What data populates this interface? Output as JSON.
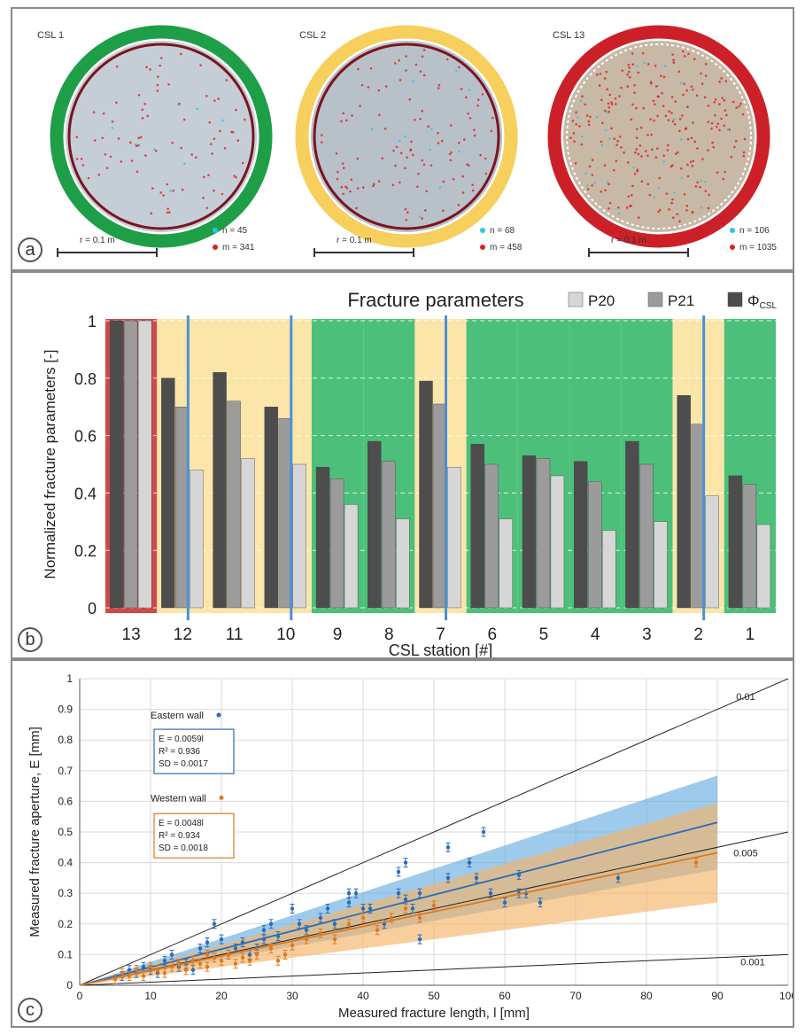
{
  "panels": {
    "a": {
      "label": "a",
      "samples": [
        {
          "title": "CSL 1",
          "ring_color": "#1f9e48",
          "n": "n = 45",
          "m": "m = 341",
          "scale": "r = 0.1 m"
        },
        {
          "title": "CSL 2",
          "ring_color": "#f6cf5c",
          "n": "n = 68",
          "m": "m = 458",
          "scale": "r = 0.1 m"
        },
        {
          "title": "CSL 13",
          "ring_color": "#cc2029",
          "n": "n = 106",
          "m": "m = 1035",
          "scale": "r = 0.1 m"
        }
      ],
      "colors": {
        "n_dot": "#2ec4e8",
        "m_dot": "#e02020"
      }
    },
    "b": {
      "label": "b"
    },
    "c": {
      "label": "c"
    }
  },
  "chart_data": [
    {
      "type": "bar",
      "title": "Fracture parameters",
      "xlabel": "CSL station [#]",
      "ylabel": "Normalized fracture parameters [-]",
      "ylim": [
        0,
        1
      ],
      "yticks": [
        "0",
        "0.2",
        "0.4",
        "0.6",
        "0.8",
        "1"
      ],
      "categories": [
        "13",
        "12",
        "11",
        "10",
        "9",
        "8",
        "7",
        "6",
        "5",
        "4",
        "3",
        "2",
        "1"
      ],
      "legend_position": "top-right",
      "series": [
        {
          "name": "P20",
          "color": "#d6d6d6",
          "values": [
            1.0,
            0.48,
            0.52,
            0.5,
            0.36,
            0.31,
            0.49,
            0.31,
            0.46,
            0.27,
            0.3,
            0.39,
            0.29
          ]
        },
        {
          "name": "P21",
          "color": "#9b9b9b",
          "values": [
            1.0,
            0.7,
            0.72,
            0.66,
            0.45,
            0.51,
            0.71,
            0.5,
            0.52,
            0.44,
            0.5,
            0.64,
            0.43
          ]
        },
        {
          "name": "Φ",
          "name_sub": "CSL",
          "color": "#4d4d4d",
          "values": [
            1.0,
            0.8,
            0.82,
            0.7,
            0.49,
            0.58,
            0.79,
            0.57,
            0.53,
            0.51,
            0.58,
            0.74,
            0.46
          ]
        }
      ],
      "station_zones": [
        "red",
        "yellow",
        "yellow",
        "yellow",
        "green",
        "green",
        "yellow",
        "green",
        "green",
        "green",
        "green",
        "yellow",
        "green"
      ],
      "zone_colors": {
        "red": "#d04848",
        "yellow": "#fbe5a8",
        "green": "#4cc07a"
      },
      "marked_stations": [
        "12",
        "10",
        "7",
        "2"
      ],
      "marker_color": "#4a90d9"
    },
    {
      "type": "scatter",
      "xlabel": "Measured fracture length, l [mm]",
      "ylabel": "Measured fracture aperture, E [mm]",
      "xlim": [
        0,
        100
      ],
      "ylim": [
        0,
        1
      ],
      "xticks": [
        "0",
        "10",
        "20",
        "30",
        "40",
        "50",
        "60",
        "70",
        "80",
        "90",
        "100"
      ],
      "yticks": [
        "0",
        "0.1",
        "0.2",
        "0.3",
        "0.4",
        "0.5",
        "0.6",
        "0.7",
        "0.8",
        "0.9",
        "1"
      ],
      "reference_lines": [
        {
          "label": "0.01",
          "slope": 0.01
        },
        {
          "label": "0.005",
          "slope": 0.005
        },
        {
          "label": "0.001",
          "slope": 0.001
        }
      ],
      "series": [
        {
          "name": "Eastern wall",
          "color": "#2b6cb8",
          "band_color": "#6aaee0",
          "fit": {
            "slope": 0.0059,
            "xmax": 90
          },
          "band": {
            "upper": 0.0076,
            "lower": 0.0042
          },
          "stats": [
            "E = 0.0059l",
            "R² = 0.936",
            "SD = 0.0017"
          ],
          "points": [
            [
              6,
              0.03
            ],
            [
              7,
              0.05
            ],
            [
              8,
              0.04
            ],
            [
              9,
              0.06
            ],
            [
              10,
              0.05
            ],
            [
              11,
              0.04
            ],
            [
              12,
              0.08
            ],
            [
              13,
              0.1
            ],
            [
              14,
              0.06
            ],
            [
              15,
              0.07
            ],
            [
              16,
              0.05
            ],
            [
              17,
              0.12
            ],
            [
              18,
              0.14
            ],
            [
              19,
              0.2
            ],
            [
              20,
              0.15
            ],
            [
              21,
              0.1
            ],
            [
              22,
              0.12
            ],
            [
              23,
              0.14
            ],
            [
              24,
              0.1
            ],
            [
              25,
              0.12
            ],
            [
              26,
              0.18
            ],
            [
              26,
              0.15
            ],
            [
              27,
              0.2
            ],
            [
              28,
              0.16
            ],
            [
              30,
              0.25
            ],
            [
              31,
              0.2
            ],
            [
              32,
              0.18
            ],
            [
              34,
              0.22
            ],
            [
              35,
              0.25
            ],
            [
              36,
              0.2
            ],
            [
              38,
              0.3
            ],
            [
              38,
              0.27
            ],
            [
              39,
              0.3
            ],
            [
              40,
              0.25
            ],
            [
              41,
              0.25
            ],
            [
              43,
              0.2
            ],
            [
              45,
              0.37
            ],
            [
              45,
              0.3
            ],
            [
              46,
              0.4
            ],
            [
              46,
              0.28
            ],
            [
              47,
              0.25
            ],
            [
              48,
              0.15
            ],
            [
              48,
              0.3
            ],
            [
              52,
              0.45
            ],
            [
              52,
              0.35
            ],
            [
              55,
              0.4
            ],
            [
              56,
              0.35
            ],
            [
              57,
              0.5
            ],
            [
              58,
              0.3
            ],
            [
              60,
              0.27
            ],
            [
              62,
              0.36
            ],
            [
              62,
              0.3
            ],
            [
              63,
              0.3
            ],
            [
              65,
              0.27
            ],
            [
              76,
              0.35
            ]
          ]
        },
        {
          "name": "Western wall",
          "color": "#e07820",
          "band_color": "#f4b469",
          "fit": {
            "slope": 0.0048,
            "xmax": 90
          },
          "band": {
            "upper": 0.0066,
            "lower": 0.003
          },
          "stats": [
            "E = 0.0048l",
            "R² = 0.934",
            "SD = 0.0018"
          ],
          "points": [
            [
              5,
              0.02
            ],
            [
              6,
              0.04
            ],
            [
              7,
              0.03
            ],
            [
              8,
              0.05
            ],
            [
              9,
              0.03
            ],
            [
              10,
              0.06
            ],
            [
              11,
              0.05
            ],
            [
              12,
              0.04
            ],
            [
              13,
              0.06
            ],
            [
              14,
              0.07
            ],
            [
              15,
              0.05
            ],
            [
              16,
              0.08
            ],
            [
              17,
              0.07
            ],
            [
              18,
              0.1
            ],
            [
              18,
              0.06
            ],
            [
              19,
              0.09
            ],
            [
              20,
              0.08
            ],
            [
              21,
              0.1
            ],
            [
              22,
              0.07
            ],
            [
              23,
              0.09
            ],
            [
              24,
              0.08
            ],
            [
              25,
              0.1
            ],
            [
              27,
              0.12
            ],
            [
              28,
              0.08
            ],
            [
              29,
              0.1
            ],
            [
              30,
              0.13
            ],
            [
              32,
              0.15
            ],
            [
              34,
              0.17
            ],
            [
              36,
              0.15
            ],
            [
              38,
              0.2
            ],
            [
              40,
              0.22
            ],
            [
              42,
              0.18
            ],
            [
              44,
              0.22
            ],
            [
              46,
              0.25
            ],
            [
              48,
              0.22
            ],
            [
              50,
              0.26
            ],
            [
              87,
              0.4
            ]
          ]
        }
      ]
    }
  ]
}
